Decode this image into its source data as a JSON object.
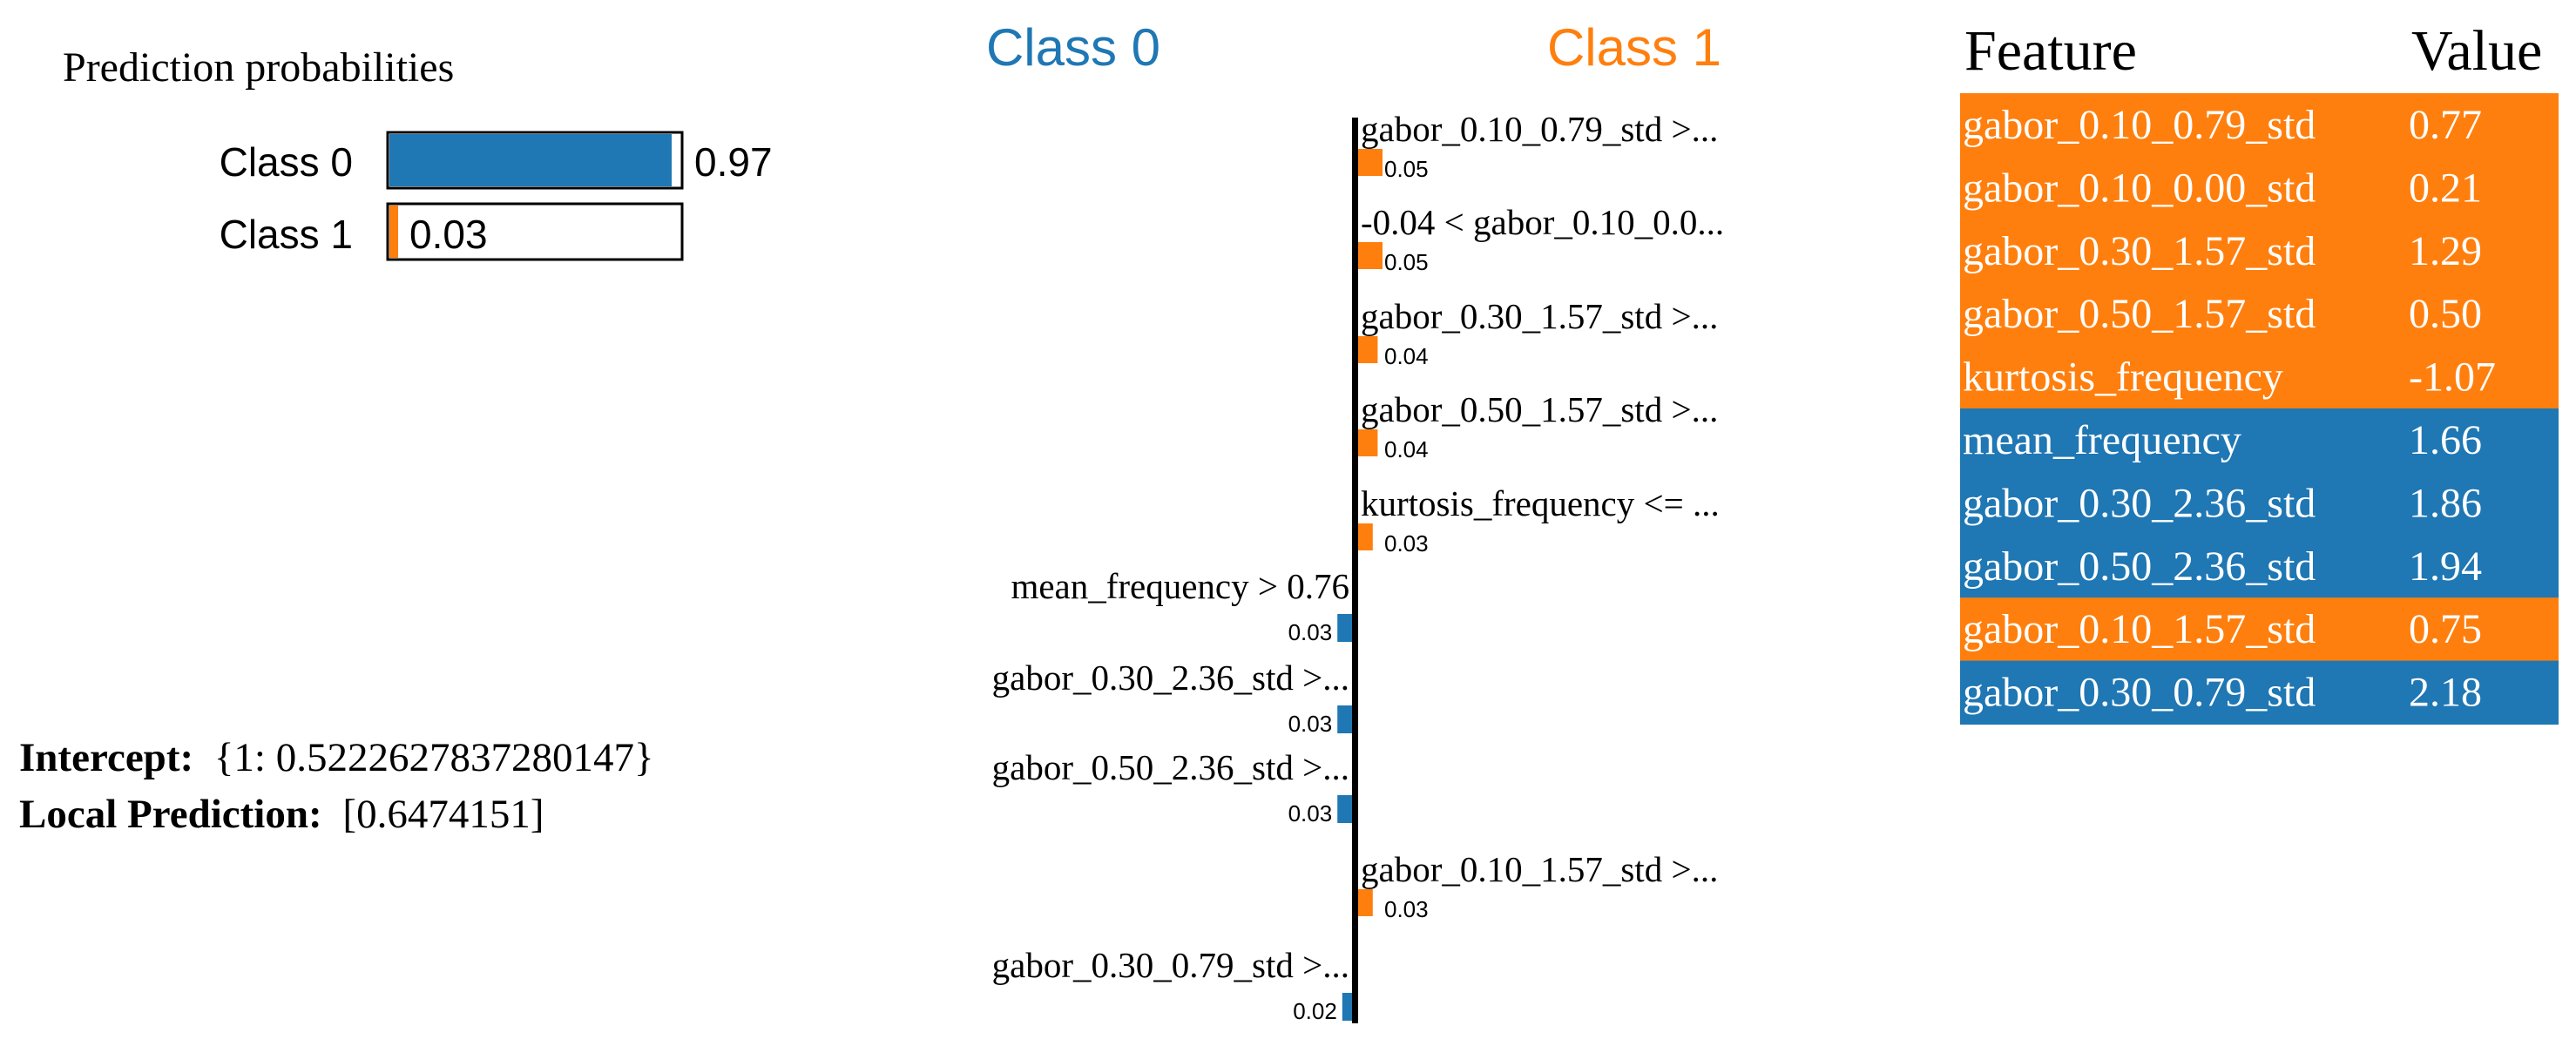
{
  "colors": {
    "class0": "#1f77b4",
    "class1": "#ff7f0e",
    "text": "#000000",
    "background": "#ffffff"
  },
  "probabilities": {
    "title": "Prediction probabilities",
    "items": [
      {
        "label": "Class 0",
        "value": 0.97,
        "display": "0.97",
        "color": "#1f77b4"
      },
      {
        "label": "Class 1",
        "value": 0.03,
        "display": "0.03",
        "color": "#ff7f0e"
      }
    ]
  },
  "intercept": {
    "label": "Intercept:",
    "value": "{1: 0.5222627837280147}"
  },
  "local_prediction": {
    "label": "Local Prediction:",
    "value": "[0.6474151]"
  },
  "chart_data": {
    "type": "bar",
    "orientation": "horizontal",
    "left_header": "Class 0",
    "right_header": "Class 1",
    "items": [
      {
        "label": "gabor_0.10_0.79_std >...",
        "value": 0.05,
        "display": "0.05",
        "class": 1
      },
      {
        "label": "-0.04 < gabor_0.10_0.0...",
        "value": 0.05,
        "display": "0.05",
        "class": 1
      },
      {
        "label": "gabor_0.30_1.57_std >...",
        "value": 0.04,
        "display": "0.04",
        "class": 1
      },
      {
        "label": "gabor_0.50_1.57_std >...",
        "value": 0.04,
        "display": "0.04",
        "class": 1
      },
      {
        "label": "kurtosis_frequency <= ...",
        "value": 0.03,
        "display": "0.03",
        "class": 1
      },
      {
        "label": "mean_frequency > 0.76",
        "value": 0.03,
        "display": "0.03",
        "class": 0
      },
      {
        "label": "gabor_0.30_2.36_std >...",
        "value": 0.03,
        "display": "0.03",
        "class": 0
      },
      {
        "label": "gabor_0.50_2.36_std >...",
        "value": 0.03,
        "display": "0.03",
        "class": 0
      },
      {
        "label": "gabor_0.10_1.57_std >...",
        "value": 0.03,
        "display": "0.03",
        "class": 1
      },
      {
        "label": "gabor_0.30_0.79_std >...",
        "value": 0.02,
        "display": "0.02",
        "class": 0
      }
    ]
  },
  "feature_table": {
    "headers": [
      "Feature",
      "Value"
    ],
    "rows": [
      {
        "feature": "gabor_0.10_0.79_std",
        "value": "0.77",
        "class": 1
      },
      {
        "feature": "gabor_0.10_0.00_std",
        "value": "0.21",
        "class": 1
      },
      {
        "feature": "gabor_0.30_1.57_std",
        "value": "1.29",
        "class": 1
      },
      {
        "feature": "gabor_0.50_1.57_std",
        "value": "0.50",
        "class": 1
      },
      {
        "feature": "kurtosis_frequency",
        "value": "-1.07",
        "class": 1
      },
      {
        "feature": "mean_frequency",
        "value": "1.66",
        "class": 0
      },
      {
        "feature": "gabor_0.30_2.36_std",
        "value": "1.86",
        "class": 0
      },
      {
        "feature": "gabor_0.50_2.36_std",
        "value": "1.94",
        "class": 0
      },
      {
        "feature": "gabor_0.10_1.57_std",
        "value": "0.75",
        "class": 1
      },
      {
        "feature": "gabor_0.30_0.79_std",
        "value": "2.18",
        "class": 0
      }
    ]
  }
}
